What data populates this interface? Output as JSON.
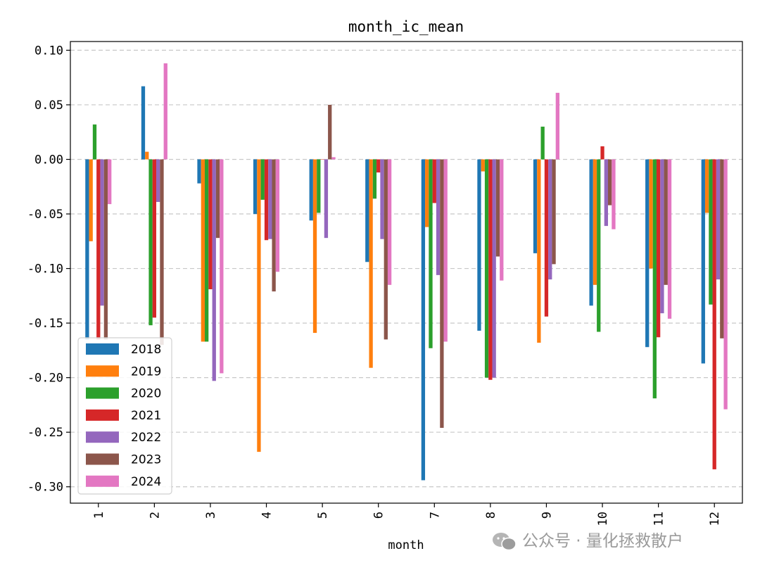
{
  "chart_data": {
    "type": "bar",
    "title": "month_ic_mean",
    "xlabel": "month",
    "ylabel": "",
    "ylim": [
      -0.315,
      0.108
    ],
    "yticks": [
      0.1,
      0.05,
      0.0,
      -0.05,
      -0.1,
      -0.15,
      -0.2,
      -0.25,
      -0.3
    ],
    "ytick_labels": [
      "0.10",
      "0.05",
      "0.00",
      "-0.05",
      "-0.10",
      "-0.15",
      "-0.20",
      "-0.25",
      "-0.30"
    ],
    "grid": "horizontal dashed",
    "legend_position": "lower-left",
    "categories": [
      "1",
      "2",
      "3",
      "4",
      "5",
      "6",
      "7",
      "8",
      "9",
      "10",
      "11",
      "12"
    ],
    "series": [
      {
        "name": "2018",
        "color": "#1f77b4",
        "values": [
          -0.165,
          0.067,
          -0.022,
          -0.05,
          -0.056,
          -0.094,
          -0.294,
          -0.157,
          -0.086,
          -0.134,
          -0.172,
          -0.187
        ]
      },
      {
        "name": "2019",
        "color": "#ff7f0e",
        "values": [
          -0.075,
          0.007,
          -0.167,
          -0.268,
          -0.159,
          -0.191,
          -0.062,
          -0.011,
          -0.168,
          -0.115,
          -0.1,
          -0.049
        ]
      },
      {
        "name": "2020",
        "color": "#2ca02c",
        "values": [
          0.032,
          -0.152,
          -0.167,
          -0.037,
          -0.049,
          -0.036,
          -0.173,
          -0.2,
          0.03,
          -0.158,
          -0.219,
          -0.133
        ]
      },
      {
        "name": "2021",
        "color": "#d62728",
        "values": [
          -0.165,
          -0.145,
          -0.119,
          -0.074,
          0.0,
          -0.012,
          -0.04,
          -0.202,
          -0.144,
          0.012,
          -0.163,
          -0.284
        ]
      },
      {
        "name": "2022",
        "color": "#9467bd",
        "values": [
          -0.134,
          -0.039,
          -0.203,
          -0.073,
          -0.072,
          -0.073,
          -0.106,
          -0.2,
          -0.11,
          -0.061,
          -0.141,
          -0.11
        ]
      },
      {
        "name": "2023",
        "color": "#8c564b",
        "values": [
          -0.165,
          -0.17,
          -0.072,
          -0.121,
          0.05,
          -0.165,
          -0.246,
          -0.089,
          -0.096,
          -0.042,
          -0.115,
          -0.164
        ]
      },
      {
        "name": "2024",
        "color": "#e377c2",
        "values": [
          -0.041,
          0.088,
          -0.196,
          -0.103,
          0.002,
          -0.115,
          -0.167,
          -0.111,
          0.061,
          -0.064,
          -0.146,
          -0.229
        ]
      }
    ]
  },
  "watermark": {
    "text": "公众号 · 量化拯救散户"
  }
}
